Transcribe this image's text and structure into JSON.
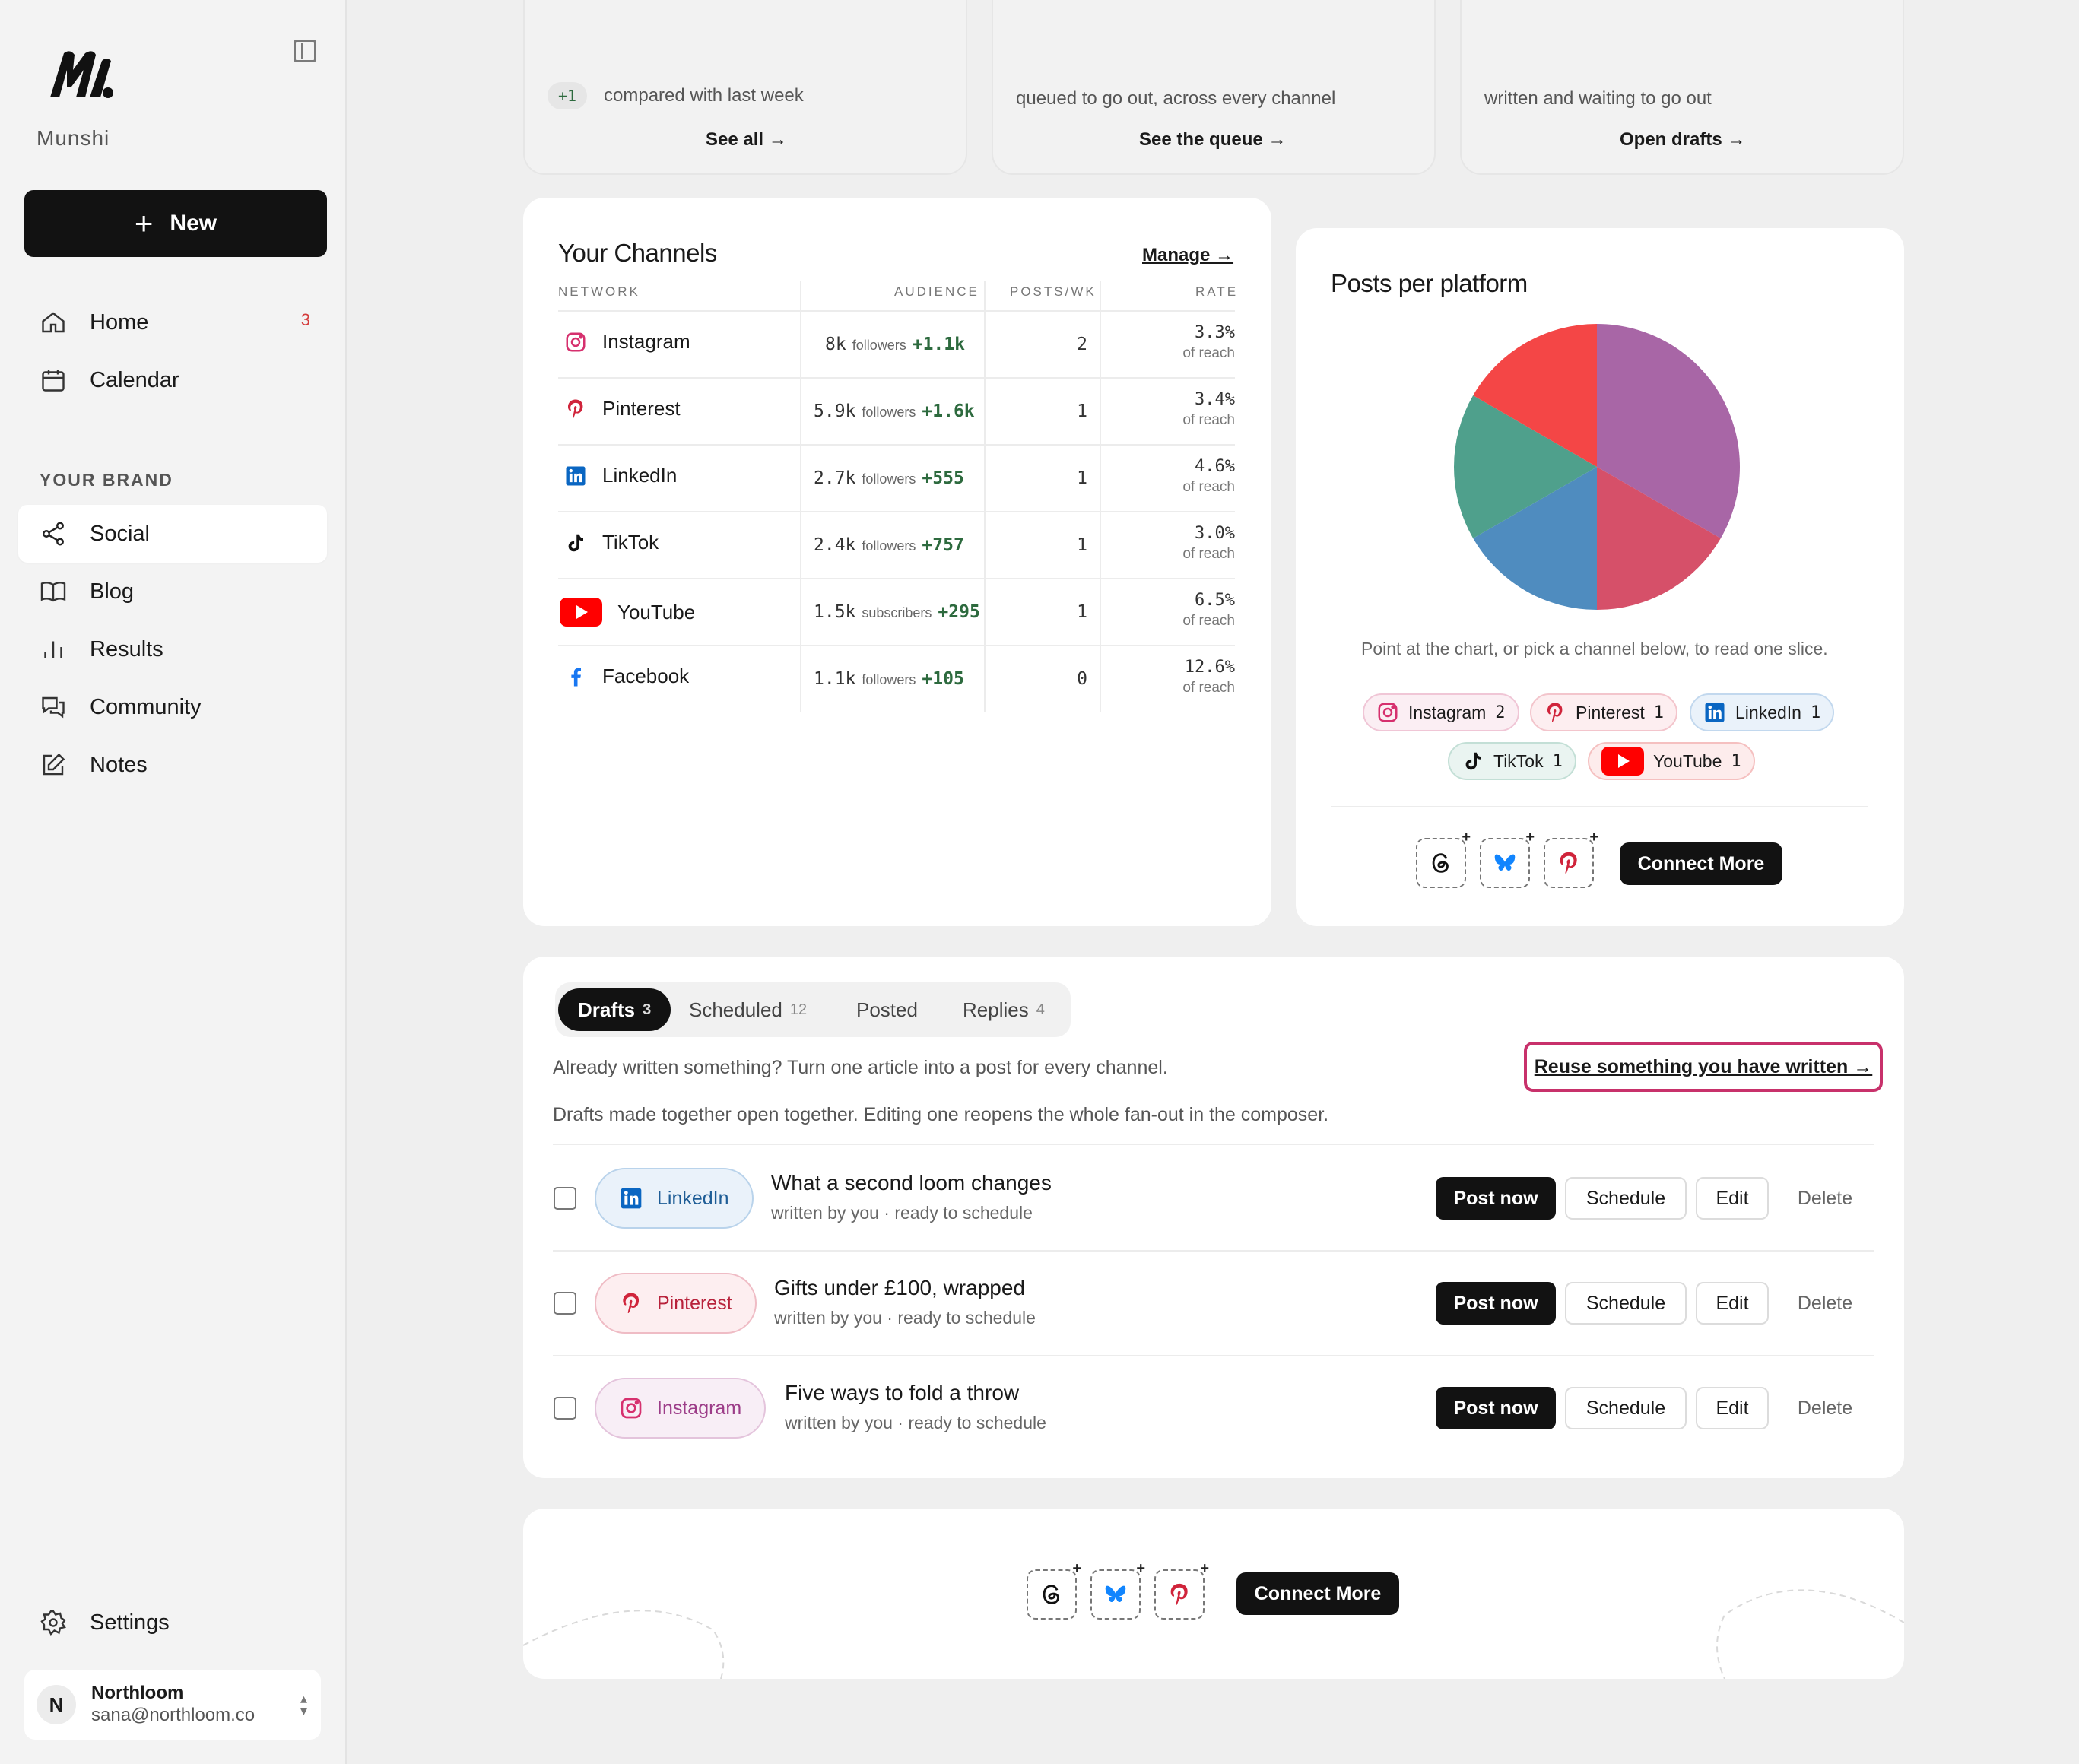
{
  "sidebar": {
    "brand": "Munshi",
    "new_label": "New",
    "nav": [
      {
        "label": "Home",
        "icon": "home-icon",
        "badge": "3"
      },
      {
        "label": "Calendar",
        "icon": "calendar-icon"
      }
    ],
    "section_label": "YOUR BRAND",
    "brand_nav": [
      {
        "label": "Social",
        "icon": "share-icon",
        "active": true
      },
      {
        "label": "Blog",
        "icon": "book-icon"
      },
      {
        "label": "Results",
        "icon": "bar-chart-icon"
      },
      {
        "label": "Community",
        "icon": "chat-icon"
      },
      {
        "label": "Notes",
        "icon": "edit-icon"
      }
    ],
    "settings_label": "Settings",
    "account": {
      "initial": "N",
      "name": "Northloom",
      "email": "sana@northloom.co"
    }
  },
  "stats": [
    {
      "delta": "+1",
      "text": "compared with last week",
      "link": "See all →"
    },
    {
      "text": "queued to go out, across every channel",
      "link": "See the queue →"
    },
    {
      "text": "written and waiting to go out",
      "link": "Open drafts →"
    }
  ],
  "channels": {
    "title": "Your Channels",
    "manage": "Manage →",
    "headers": {
      "network": "NETWORK",
      "audience": "AUDIENCE",
      "posts": "POSTS/WK",
      "rate": "RATE"
    },
    "rows": [
      {
        "name": "Instagram",
        "audience": "8k",
        "unit": "followers",
        "delta": "+1.1k",
        "posts": "2",
        "rate": "3.3%",
        "rate_sub": "of reach"
      },
      {
        "name": "Pinterest",
        "audience": "5.9k",
        "unit": "followers",
        "delta": "+1.6k",
        "posts": "1",
        "rate": "3.4%",
        "rate_sub": "of reach"
      },
      {
        "name": "LinkedIn",
        "audience": "2.7k",
        "unit": "followers",
        "delta": "+555",
        "posts": "1",
        "rate": "4.6%",
        "rate_sub": "of reach"
      },
      {
        "name": "TikTok",
        "audience": "2.4k",
        "unit": "followers",
        "delta": "+757",
        "posts": "1",
        "rate": "3.0%",
        "rate_sub": "of reach"
      },
      {
        "name": "YouTube",
        "audience": "1.5k",
        "unit": "subscribers",
        "delta": "+295",
        "posts": "1",
        "rate": "6.5%",
        "rate_sub": "of reach"
      },
      {
        "name": "Facebook",
        "audience": "1.1k",
        "unit": "followers",
        "delta": "+105",
        "posts": "0",
        "rate": "12.6%",
        "rate_sub": "of reach"
      }
    ]
  },
  "pie": {
    "title": "Posts per platform",
    "hint": "Point at the chart, or pick a channel below, to read one slice.",
    "connect_label": "Connect More",
    "add_networks": [
      "threads-icon",
      "bluesky-icon",
      "pinterest-icon"
    ]
  },
  "chart_data": {
    "type": "pie",
    "title": "Posts per platform",
    "slices": [
      {
        "label": "Instagram",
        "value": 2,
        "color": "#a866a6"
      },
      {
        "label": "Pinterest",
        "value": 1,
        "color": "#d65069"
      },
      {
        "label": "LinkedIn",
        "value": 1,
        "color": "#4f8cbf"
      },
      {
        "label": "TikTok",
        "value": 1,
        "color": "#4fa08c"
      },
      {
        "label": "YouTube",
        "value": 1,
        "color": "#f44646"
      }
    ]
  },
  "drafts": {
    "tabs": [
      {
        "label": "Drafts",
        "count": "3",
        "active": true
      },
      {
        "label": "Scheduled",
        "count": "12"
      },
      {
        "label": "Posted",
        "count": ""
      },
      {
        "label": "Replies",
        "count": "4"
      }
    ],
    "intro": "Already written something? Turn one article into a post for every channel.",
    "note": "Drafts made together open together. Editing one reopens the whole fan-out in the composer.",
    "reuse_link": "Reuse something you have written →",
    "items": [
      {
        "channel": "LinkedIn",
        "title": "What a second loom changes",
        "sub": "written by you · ready to schedule"
      },
      {
        "channel": "Pinterest",
        "title": "Gifts under £100, wrapped",
        "sub": "written by you · ready to schedule"
      },
      {
        "channel": "Instagram",
        "title": "Five ways to fold a throw",
        "sub": "written by you · ready to schedule"
      }
    ],
    "actions": {
      "post": "Post now",
      "schedule": "Schedule",
      "edit": "Edit",
      "delete": "Delete"
    }
  },
  "footer_connect": {
    "label": "Connect More"
  },
  "colors": {
    "accent_dark": "#121212",
    "highlight": "#c8316b",
    "positive": "#2d6a3e"
  }
}
